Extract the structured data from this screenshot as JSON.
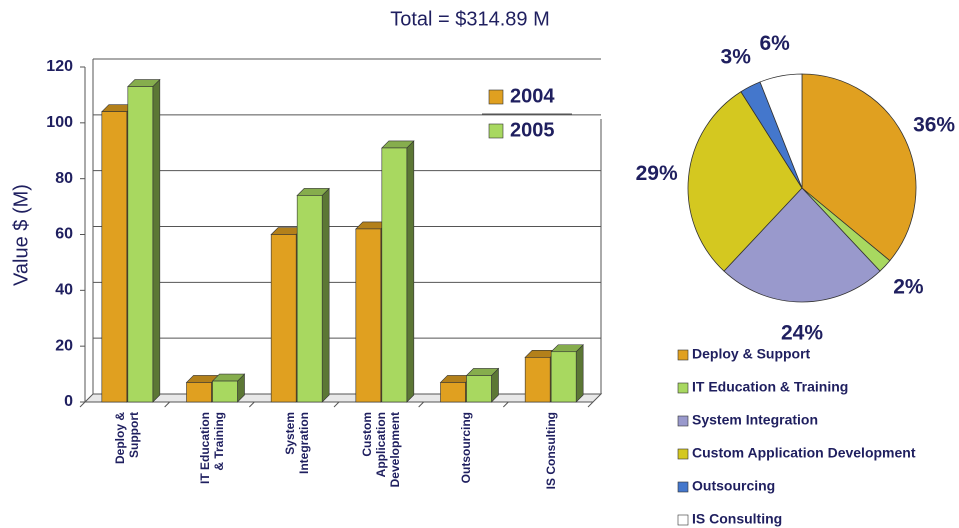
{
  "title": "Total = $314.89 M",
  "chart_data": [
    {
      "type": "bar",
      "ylabel": "Value $ (M)",
      "categories": [
        "Deploy & Support",
        "IT Education & Training",
        "System Integration",
        "Custom Application Development",
        "Outsourcing",
        "IS Consulting"
      ],
      "series": [
        {
          "name": "2004",
          "color": "#e0a020",
          "values": [
            104,
            7,
            60,
            62,
            7,
            16
          ]
        },
        {
          "name": "2005",
          "color": "#a8d860",
          "values": [
            113,
            7.5,
            74,
            91,
            9.5,
            18
          ]
        }
      ],
      "ylim": [
        0,
        120
      ],
      "yticks": [
        0,
        20,
        40,
        60,
        80,
        100,
        120
      ],
      "grid": true
    },
    {
      "type": "pie",
      "categories": [
        "Deploy & Support",
        "IT Education & Training",
        "System Integration",
        "Custom Application Development",
        "Outsourcing",
        "IS Consulting"
      ],
      "values": [
        36,
        2,
        24,
        29,
        3,
        6
      ],
      "value_labels": [
        "36%",
        "2%",
        "24%",
        "29%",
        "3%",
        "6%"
      ],
      "colors": [
        "#e0a020",
        "#a8d860",
        "#9999cc",
        "#d4c820",
        "#4477cc",
        "#ffffff"
      ]
    }
  ]
}
